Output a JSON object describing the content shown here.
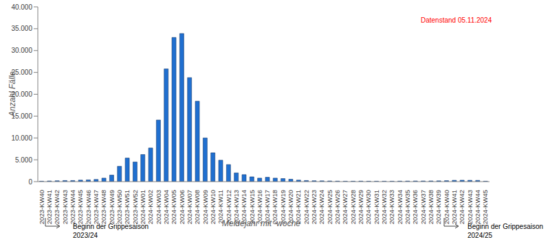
{
  "chart_data": {
    "type": "bar",
    "x_label": "Meldejahr mit -woche",
    "y_label": "Anzahl Fälle",
    "categories": [
      "2023-KW40",
      "2023-KW41",
      "2023-KW42",
      "2023-KW43",
      "2023-KW44",
      "2023-KW45",
      "2023-KW46",
      "2023-KW47",
      "2023-KW48",
      "2023-KW49",
      "2023-KW50",
      "2023-KW51",
      "2023-KW52",
      "2024-KW01",
      "2024-KW02",
      "2024-KW03",
      "2024-KW04",
      "2024-KW05",
      "2024-KW06",
      "2024-KW07",
      "2024-KW08",
      "2024-KW09",
      "2024-KW10",
      "2024-KW11",
      "2024-KW12",
      "2024-KW13",
      "2024-KW14",
      "2024-KW15",
      "2024-KW16",
      "2024-KW17",
      "2024-KW18",
      "2024-KW19",
      "2024-KW20",
      "2024-KW21",
      "2024-KW22",
      "2024-KW23",
      "2024-KW24",
      "2024-KW25",
      "2024-KW26",
      "2024-KW27",
      "2024-KW28",
      "2024-KW29",
      "2024-KW30",
      "2024-KW31",
      "2024-KW32",
      "2024-KW33",
      "2024-KW34",
      "2024-KW35",
      "2024-KW36",
      "2024-KW37",
      "2024-KW38",
      "2024-KW39",
      "2024-KW40",
      "2024-KW41",
      "2024-KW42",
      "2024-KW43",
      "2024-KW44",
      "2024-KW45"
    ],
    "values": [
      100,
      150,
      200,
      250,
      250,
      350,
      400,
      500,
      800,
      1500,
      3500,
      5400,
      4500,
      6200,
      7700,
      14100,
      25800,
      33000,
      33900,
      23800,
      18400,
      10000,
      6600,
      4900,
      3900,
      2000,
      1600,
      1100,
      800,
      1000,
      800,
      700,
      550,
      350,
      250,
      200,
      180,
      150,
      120,
      100,
      100,
      120,
      100,
      100,
      100,
      100,
      120,
      130,
      150,
      150,
      160,
      180,
      220,
      300,
      320,
      300,
      280,
      100
    ],
    "color": "#1f6fd0",
    "ylim": [
      0,
      40000
    ],
    "yticks": [
      0,
      {
        "value": 5000,
        "label": "5.000"
      },
      {
        "value": 10000,
        "label": "10.000"
      },
      {
        "value": 15000,
        "label": "15.000"
      },
      {
        "value": 20000,
        "label": "20.000"
      },
      {
        "value": 25000,
        "label": "25.000"
      },
      {
        "value": 30000,
        "label": "30.000"
      },
      {
        "value": 35000,
        "label": "35.000"
      },
      {
        "value": 40000,
        "label": "40.000"
      }
    ],
    "grid": false,
    "annotations": [
      {
        "text": "Datenstand 05.11.2024",
        "color": "#ff0000"
      },
      {
        "lines": [
          "Beginn der Grippesaison",
          "2023/24"
        ]
      },
      {
        "lines": [
          "Beginn der Grippesaison",
          "2024/25"
        ]
      }
    ]
  }
}
